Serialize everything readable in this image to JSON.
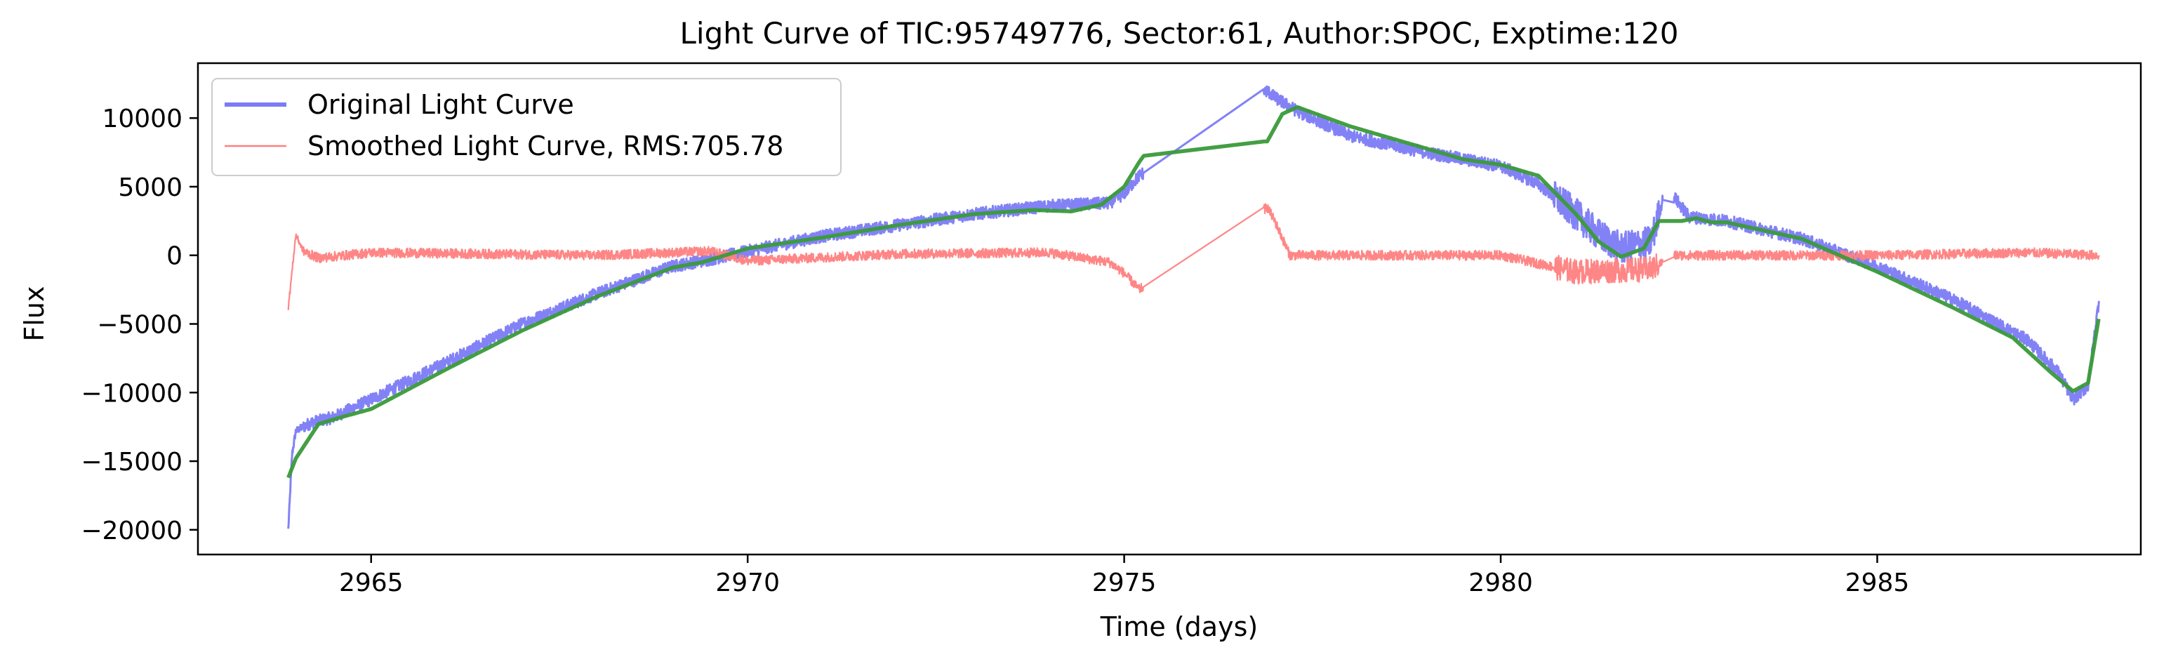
{
  "chart_data": {
    "type": "line",
    "title": "Light Curve of TIC:95749776, Sector:61, Author:SPOC, Exptime:120",
    "xlabel": "Time (days)",
    "ylabel": "Flux",
    "xlim": [
      2962.7,
      2988.5
    ],
    "ylim": [
      -21800,
      14000
    ],
    "xticks": [
      2965,
      2970,
      2975,
      2980,
      2985
    ],
    "yticks": [
      -20000,
      -15000,
      -10000,
      -5000,
      0,
      5000,
      10000
    ],
    "grid": false,
    "legend_position": "top-left",
    "legend": [
      {
        "label": "Original Light Curve",
        "color": "#7b7bf5"
      },
      {
        "label": "Smoothed Light Curve, RMS:705.78",
        "color": "#ff8080"
      }
    ],
    "series": [
      {
        "name": "Original Light Curve",
        "color": "#7b7bf5",
        "noise": 450,
        "x": [
          2963.9,
          2963.95,
          2964.0,
          2964.2,
          2964.5,
          2965.0,
          2966.0,
          2967.0,
          2968.0,
          2969.0,
          2969.5,
          2970.0,
          2971.0,
          2972.0,
          2973.0,
          2974.0,
          2974.8,
          2975.0,
          2975.2,
          2976.9,
          2977.0,
          2977.3,
          2978.0,
          2979.0,
          2980.0,
          2980.5,
          2981.0,
          2981.3,
          2981.6,
          2982.0,
          2982.2,
          2982.5,
          2983.0,
          2984.0,
          2985.0,
          2986.0,
          2987.0,
          2987.4,
          2987.6,
          2987.8,
          2987.95
        ],
        "y": [
          -20000,
          -14500,
          -12800,
          -12200,
          -11800,
          -10500,
          -7800,
          -5000,
          -2800,
          -800,
          -300,
          300,
          1400,
          2200,
          3000,
          3600,
          3800,
          4500,
          5800,
          12000,
          11500,
          10500,
          8700,
          7500,
          6500,
          5200,
          3000,
          1500,
          500,
          1000,
          5000,
          2800,
          2500,
          1200,
          -800,
          -3200,
          -6200,
          -8500,
          -10500,
          -9500,
          -3000
        ]
      },
      {
        "name": "Smoothed",
        "color": "#3a9a3a",
        "noise": 0,
        "x": [
          2963.9,
          2964.0,
          2964.3,
          2964.6,
          2965.0,
          2966.0,
          2967.0,
          2968.0,
          2969.0,
          2969.4,
          2970.0,
          2971.0,
          2972.0,
          2973.0,
          2973.8,
          2974.3,
          2974.7,
          2975.0,
          2975.2,
          2975.4,
          2976.9,
          2977.1,
          2977.3,
          2977.5,
          2978.0,
          2979.0,
          2979.5,
          2980.0,
          2980.5,
          2981.0,
          2981.3,
          2981.6,
          2981.9,
          2982.1,
          2982.4,
          2982.6,
          2982.8,
          2983.0,
          2984.0,
          2985.0,
          2986.0,
          2986.8,
          2987.3,
          2987.6,
          2987.8,
          2987.95
        ],
        "y": [
          -16200,
          -14800,
          -12300,
          -11800,
          -11200,
          -8300,
          -5500,
          -3000,
          -900,
          -500,
          500,
          1300,
          2200,
          3000,
          3300,
          3200,
          3700,
          5000,
          6800,
          8300,
          8300,
          10300,
          10800,
          10400,
          9400,
          7800,
          7000,
          6600,
          5800,
          3000,
          1000,
          -100,
          500,
          2500,
          2500,
          2700,
          2400,
          2400,
          1200,
          -1200,
          -3800,
          -6000,
          -8500,
          -9900,
          -9300,
          -4300
        ]
      },
      {
        "name": "Smoothed Light Curve, RMS:705.78",
        "color": "#ff8080",
        "noise": 350,
        "x": [
          2963.9,
          2964.0,
          2964.1,
          2964.3,
          2965.0,
          2968.0,
          2969.5,
          2970.0,
          2972.0,
          2974.0,
          2974.8,
          2975.0,
          2975.2,
          2976.9,
          2977.0,
          2977.2,
          2977.5,
          2980.0,
          2981.0,
          2982.0,
          2982.3,
          2983.0,
          2985.0,
          2987.0,
          2987.95
        ],
        "y": [
          -3800,
          1500,
          300,
          -200,
          200,
          0,
          300,
          -400,
          100,
          200,
          -500,
          -1300,
          -2500,
          3500,
          2500,
          0,
          0,
          0,
          -1200,
          -1000,
          0,
          0,
          0,
          200,
          0
        ]
      }
    ]
  }
}
